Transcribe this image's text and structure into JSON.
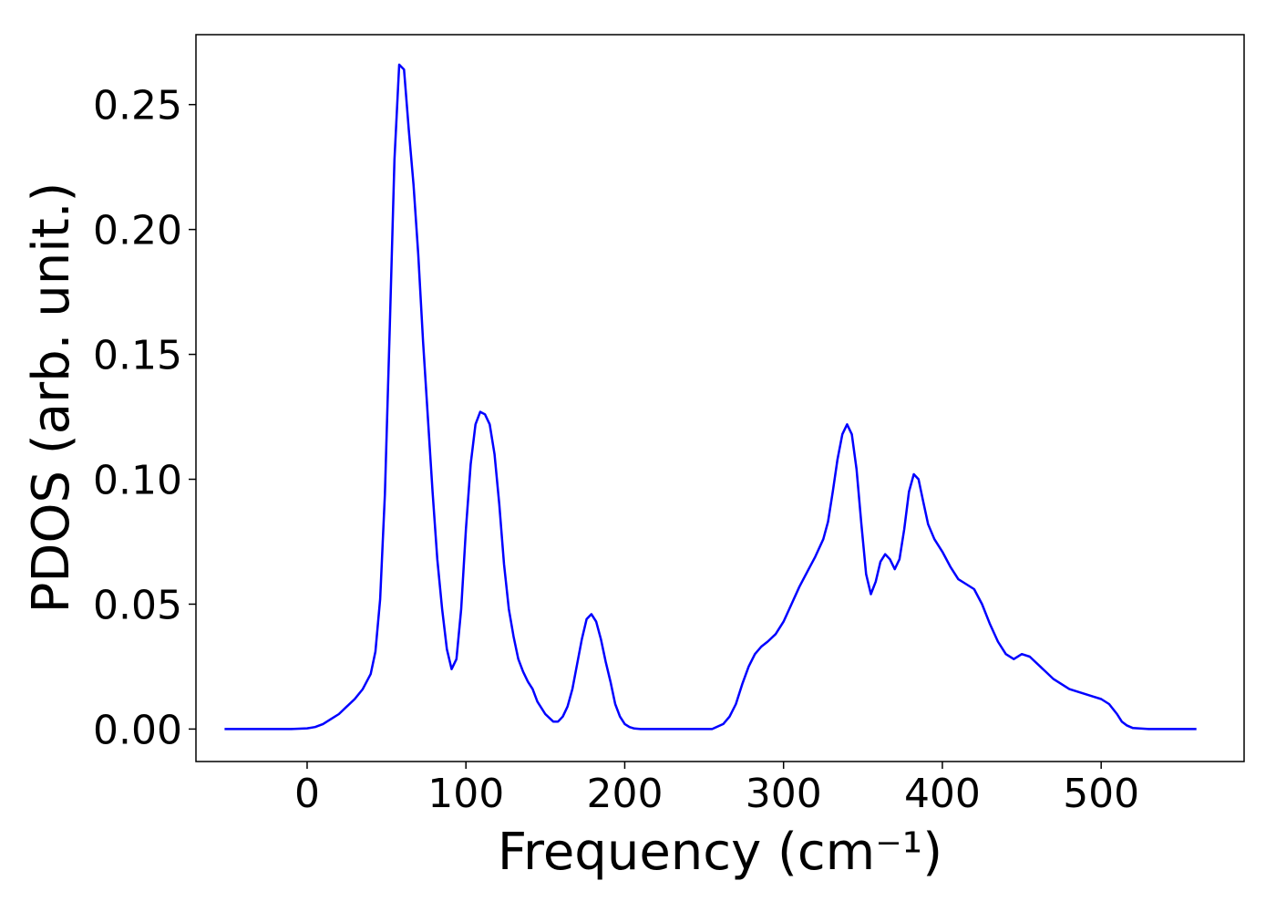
{
  "chart_data": {
    "type": "line",
    "xlabel": "Frequency (cm⁻¹)",
    "ylabel": "PDOS (arb. unit.)",
    "xlim": [
      -70,
      590
    ],
    "ylim": [
      -0.013,
      0.278
    ],
    "x_ticks": [
      0,
      100,
      200,
      300,
      400,
      500
    ],
    "x_tick_labels": [
      "0",
      "100",
      "200",
      "300",
      "400",
      "500"
    ],
    "y_ticks": [
      0.0,
      0.05,
      0.1,
      0.15,
      0.2,
      0.25
    ],
    "y_tick_labels": [
      "0.00",
      "0.05",
      "0.10",
      "0.15",
      "0.20",
      "0.25"
    ],
    "grid": false,
    "line_color": "#0000ff",
    "series": [
      {
        "x": [
          -52,
          -30,
          -10,
          0,
          5,
          10,
          15,
          20,
          25,
          30,
          35,
          40,
          43,
          46,
          49,
          52,
          55,
          58,
          61,
          64,
          67,
          70,
          73,
          76,
          79,
          82,
          85,
          88,
          91,
          94,
          97,
          100,
          103,
          106,
          109,
          112,
          115,
          118,
          121,
          124,
          127,
          130,
          133,
          136,
          139,
          142,
          145,
          150,
          155,
          158,
          161,
          164,
          167,
          170,
          173,
          176,
          179,
          182,
          185,
          188,
          191,
          194,
          197,
          200,
          203,
          206,
          210,
          215,
          225,
          240,
          255,
          262,
          266,
          270,
          274,
          278,
          282,
          286,
          290,
          295,
          300,
          305,
          310,
          315,
          320,
          325,
          328,
          331,
          334,
          337,
          340,
          343,
          346,
          349,
          352,
          355,
          358,
          361,
          364,
          367,
          370,
          373,
          376,
          379,
          382,
          385,
          388,
          391,
          395,
          400,
          405,
          410,
          415,
          420,
          425,
          430,
          435,
          440,
          445,
          450,
          455,
          460,
          465,
          470,
          475,
          480,
          485,
          490,
          495,
          500,
          505,
          510,
          513,
          516,
          520,
          530,
          560
        ],
        "y": [
          0.0,
          0.0,
          0.0,
          0.0003,
          0.0008,
          0.002,
          0.004,
          0.006,
          0.009,
          0.012,
          0.016,
          0.022,
          0.031,
          0.052,
          0.094,
          0.16,
          0.228,
          0.266,
          0.264,
          0.24,
          0.218,
          0.19,
          0.155,
          0.125,
          0.095,
          0.068,
          0.048,
          0.032,
          0.024,
          0.028,
          0.048,
          0.08,
          0.106,
          0.122,
          0.127,
          0.126,
          0.122,
          0.11,
          0.09,
          0.066,
          0.048,
          0.037,
          0.028,
          0.023,
          0.019,
          0.016,
          0.011,
          0.006,
          0.003,
          0.003,
          0.005,
          0.009,
          0.016,
          0.026,
          0.036,
          0.044,
          0.046,
          0.043,
          0.036,
          0.027,
          0.019,
          0.01,
          0.005,
          0.002,
          0.0008,
          0.0002,
          0.0,
          0.0,
          0.0,
          0.0,
          0.0,
          0.002,
          0.005,
          0.01,
          0.018,
          0.025,
          0.03,
          0.033,
          0.035,
          0.038,
          0.043,
          0.05,
          0.057,
          0.063,
          0.069,
          0.076,
          0.083,
          0.095,
          0.108,
          0.118,
          0.122,
          0.118,
          0.104,
          0.082,
          0.062,
          0.054,
          0.059,
          0.067,
          0.07,
          0.068,
          0.064,
          0.068,
          0.08,
          0.095,
          0.102,
          0.1,
          0.091,
          0.082,
          0.076,
          0.071,
          0.065,
          0.06,
          0.058,
          0.056,
          0.05,
          0.042,
          0.035,
          0.03,
          0.028,
          0.03,
          0.029,
          0.026,
          0.023,
          0.02,
          0.018,
          0.016,
          0.015,
          0.014,
          0.013,
          0.012,
          0.01,
          0.006,
          0.003,
          0.0015,
          0.0004,
          0.0,
          0.0
        ]
      }
    ]
  }
}
